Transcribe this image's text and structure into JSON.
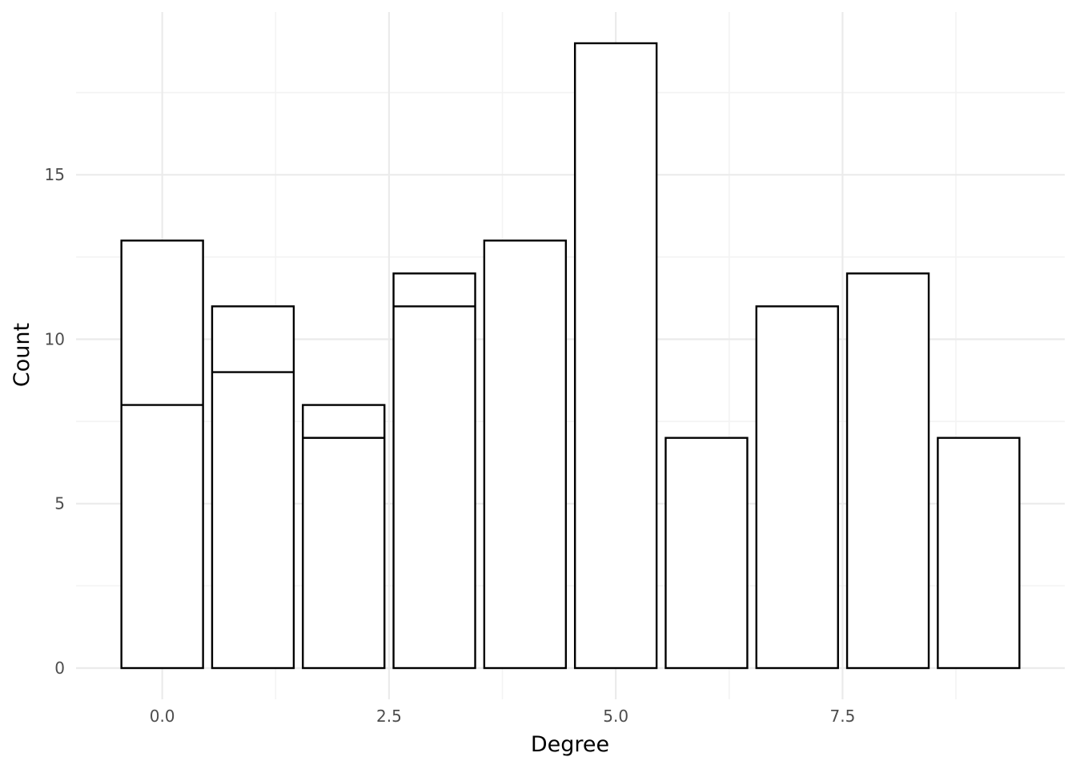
{
  "chart_data": {
    "type": "bar",
    "stacked": true,
    "xlabel": "Degree",
    "ylabel": "Count",
    "x": [
      0,
      1,
      2,
      3,
      4,
      5,
      6,
      7,
      8,
      9
    ],
    "series": [
      {
        "values": [
          8,
          9,
          7,
          11,
          13,
          19,
          7,
          11,
          12,
          7
        ]
      },
      {
        "values": [
          5,
          2,
          1,
          1,
          0,
          0,
          0,
          0,
          0,
          0
        ]
      }
    ],
    "totals": [
      13,
      11,
      8,
      12,
      13,
      19,
      7,
      11,
      12,
      7
    ],
    "xlim": [
      -0.95,
      9.95
    ],
    "ylim": [
      -0.95,
      19.95
    ],
    "x_ticks": [
      0.0,
      2.5,
      5.0,
      7.5
    ],
    "x_tick_labels": [
      "0.0",
      "2.5",
      "5.0",
      "7.5"
    ],
    "y_ticks": [
      0,
      5,
      10,
      15
    ],
    "y_tick_labels": [
      "0",
      "5",
      "10",
      "15"
    ],
    "grid": true,
    "bar_fill": "#ffffff",
    "bar_outline": "#000000"
  }
}
